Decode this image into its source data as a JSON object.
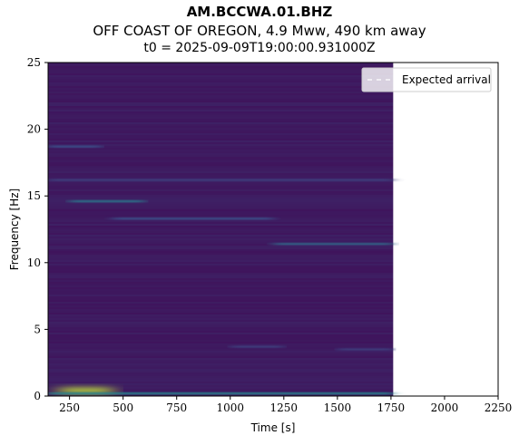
{
  "title": "AM.BCCWA.01.BHZ",
  "subtitle": "OFF COAST OF OREGON, 4.9 Mww, 490 km away",
  "subtitle2": "t0 = 2025-09-09T19:00:00.931000Z",
  "chart_data": {
    "type": "heatmap",
    "xlabel": "Time [s]",
    "ylabel": "Frequency [Hz]",
    "xlim": [
      150,
      2250
    ],
    "ylim": [
      0,
      25
    ],
    "xticks": [
      250,
      500,
      750,
      1000,
      1250,
      1500,
      1750,
      2000,
      2250
    ],
    "yticks": [
      0,
      5,
      10,
      15,
      20,
      25
    ],
    "data_extent_x": [
      150,
      1760
    ],
    "data_extent_y": [
      0,
      25
    ],
    "colormap": "viridis",
    "background_color": "#3b1f5e",
    "bright_bands": [
      {
        "y": 18.7,
        "x0": 150,
        "x1": 400,
        "intensity": 0.25
      },
      {
        "y": 16.2,
        "x0": 150,
        "x1": 1760,
        "intensity": 0.2
      },
      {
        "y": 14.6,
        "x0": 250,
        "x1": 600,
        "intensity": 0.4
      },
      {
        "y": 13.3,
        "x0": 450,
        "x1": 1200,
        "intensity": 0.25
      },
      {
        "y": 11.4,
        "x0": 1200,
        "x1": 1760,
        "intensity": 0.35
      },
      {
        "y": 3.7,
        "x0": 1000,
        "x1": 1250,
        "intensity": 0.2
      },
      {
        "y": 3.5,
        "x0": 1500,
        "x1": 1760,
        "intensity": 0.2
      },
      {
        "y": 0.4,
        "x0": 200,
        "x1": 450,
        "intensity": 0.9
      },
      {
        "y": 0.2,
        "x0": 150,
        "x1": 1760,
        "intensity": 0.45
      }
    ],
    "legend": {
      "entries": [
        {
          "label": "Expected arrival",
          "style": "dashed",
          "color": "#ffffff"
        }
      ],
      "position": "top-right"
    },
    "grid": false
  }
}
